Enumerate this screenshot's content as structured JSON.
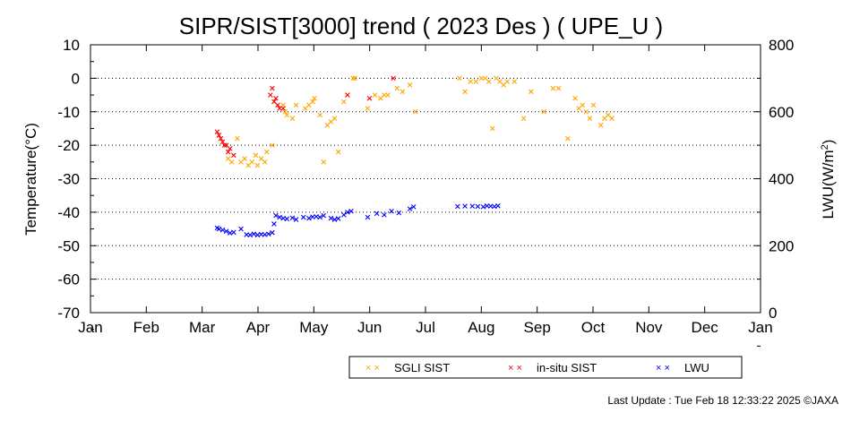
{
  "chart_data": {
    "type": "scatter",
    "title": "SIPR/SIST[3000] trend ( 2023 Des ) ( UPE_U )",
    "ylabel_left": "Temperature(°C)",
    "ylabel_right": "LWU(W/m",
    "ylabel_right_sup": "2",
    "ylabel_right_close": ")",
    "ylim_left": [
      -70,
      10
    ],
    "ylim_right": [
      0,
      800
    ],
    "yticks_left": [
      "10",
      "0",
      "-10",
      "-20",
      "-30",
      "-40",
      "-50",
      "-60",
      "-70"
    ],
    "yticks_right": [
      "800",
      "600",
      "400",
      "200",
      "0"
    ],
    "xticks": [
      "Jan",
      "Feb",
      "Mar",
      "Apr",
      "May",
      "Jun",
      "Jul",
      "Aug",
      "Sep",
      "Oct",
      "Nov",
      "Dec",
      "Jan"
    ],
    "grid": "horizontal dotted",
    "legend_position": "bottom",
    "series": [
      {
        "name": "SGLI SIST",
        "color": "#ffa500",
        "axis": "left",
        "points": [
          [
            "2023-03-17",
            -24
          ],
          [
            "2023-03-19",
            -25
          ],
          [
            "2023-03-22",
            -18
          ],
          [
            "2023-03-24",
            -25
          ],
          [
            "2023-03-26",
            -24
          ],
          [
            "2023-03-28",
            -26
          ],
          [
            "2023-03-30",
            -25
          ],
          [
            "2023-04-01",
            -23
          ],
          [
            "2023-04-02",
            -26
          ],
          [
            "2023-04-04",
            -24
          ],
          [
            "2023-04-06",
            -25
          ],
          [
            "2023-04-07",
            -22
          ],
          [
            "2023-04-10",
            -20
          ],
          [
            "2023-04-16",
            -8
          ],
          [
            "2023-04-17",
            -10
          ],
          [
            "2023-04-18",
            -11
          ],
          [
            "2023-04-21",
            -12
          ],
          [
            "2023-04-23",
            -8
          ],
          [
            "2023-04-28",
            -9
          ],
          [
            "2023-04-30",
            -8
          ],
          [
            "2023-05-02",
            -7
          ],
          [
            "2023-05-03",
            -6
          ],
          [
            "2023-05-06",
            -11
          ],
          [
            "2023-05-08",
            -25
          ],
          [
            "2023-05-10",
            -14
          ],
          [
            "2023-05-12",
            -13
          ],
          [
            "2023-05-14",
            -12
          ],
          [
            "2023-05-16",
            -22
          ],
          [
            "2023-05-19",
            -7
          ],
          [
            "2023-05-21",
            -5
          ],
          [
            "2023-05-24",
            0
          ],
          [
            "2023-05-25",
            0
          ],
          [
            "2023-06-01",
            -9
          ],
          [
            "2023-06-05",
            -5
          ],
          [
            "2023-06-08",
            -6
          ],
          [
            "2023-06-10",
            -5
          ],
          [
            "2023-06-12",
            -5
          ],
          [
            "2023-06-17",
            -3
          ],
          [
            "2023-06-20",
            -4
          ],
          [
            "2023-06-24",
            -2
          ],
          [
            "2023-06-27",
            -10
          ],
          [
            "2023-07-21",
            0
          ],
          [
            "2023-07-24",
            -4
          ],
          [
            "2023-07-27",
            -1
          ],
          [
            "2023-07-30",
            -1
          ],
          [
            "2023-08-02",
            0
          ],
          [
            "2023-08-04",
            0
          ],
          [
            "2023-08-06",
            -1
          ],
          [
            "2023-08-08",
            -15
          ],
          [
            "2023-08-10",
            0
          ],
          [
            "2023-08-12",
            -1
          ],
          [
            "2023-08-14",
            -2
          ],
          [
            "2023-08-16",
            -1
          ],
          [
            "2023-08-20",
            -1
          ],
          [
            "2023-08-25",
            -12
          ],
          [
            "2023-08-29",
            -4
          ],
          [
            "2023-09-05",
            -10
          ],
          [
            "2023-09-10",
            -3
          ],
          [
            "2023-09-13",
            -3
          ],
          [
            "2023-09-18",
            -18
          ],
          [
            "2023-09-22",
            -6
          ],
          [
            "2023-09-24",
            -9
          ],
          [
            "2023-09-26",
            -8
          ],
          [
            "2023-09-28",
            -10
          ],
          [
            "2023-09-30",
            -12
          ],
          [
            "2023-10-02",
            -8
          ],
          [
            "2023-10-06",
            -14
          ],
          [
            "2023-10-08",
            -12
          ],
          [
            "2023-10-10",
            -11
          ],
          [
            "2023-10-12",
            -12
          ]
        ]
      },
      {
        "name": "in-situ SIST",
        "color": "#ff0000",
        "axis": "left",
        "points": [
          [
            "2023-03-11",
            -16
          ],
          [
            "2023-03-12",
            -17
          ],
          [
            "2023-03-13",
            -18
          ],
          [
            "2023-03-14",
            -19
          ],
          [
            "2023-03-15",
            -20
          ],
          [
            "2023-03-16",
            -20
          ],
          [
            "2023-03-17",
            -22
          ],
          [
            "2023-03-18",
            -21
          ],
          [
            "2023-03-20",
            -23
          ],
          [
            "2023-04-09",
            -5
          ],
          [
            "2023-04-10",
            -3
          ],
          [
            "2023-04-11",
            -7
          ],
          [
            "2023-04-12",
            -6
          ],
          [
            "2023-04-13",
            -8
          ],
          [
            "2023-04-14",
            -9
          ],
          [
            "2023-04-16",
            -9
          ],
          [
            "2023-05-21",
            -5
          ],
          [
            "2023-06-02",
            -6
          ],
          [
            "2023-06-15",
            0
          ]
        ]
      },
      {
        "name": "LWU",
        "color": "#0000ff",
        "axis": "right",
        "points": [
          [
            "2023-03-11",
            253
          ],
          [
            "2023-03-12",
            250
          ],
          [
            "2023-03-14",
            247
          ],
          [
            "2023-03-16",
            243
          ],
          [
            "2023-03-18",
            238
          ],
          [
            "2023-03-20",
            240
          ],
          [
            "2023-03-24",
            250
          ],
          [
            "2023-03-27",
            233
          ],
          [
            "2023-03-29",
            232
          ],
          [
            "2023-03-31",
            235
          ],
          [
            "2023-04-02",
            232
          ],
          [
            "2023-04-04",
            234
          ],
          [
            "2023-04-06",
            233
          ],
          [
            "2023-04-08",
            235
          ],
          [
            "2023-04-10",
            239
          ],
          [
            "2023-04-11",
            265
          ],
          [
            "2023-04-12",
            290
          ],
          [
            "2023-04-14",
            285
          ],
          [
            "2023-04-16",
            282
          ],
          [
            "2023-04-18",
            280
          ],
          [
            "2023-04-21",
            283
          ],
          [
            "2023-04-23",
            278
          ],
          [
            "2023-04-27",
            285
          ],
          [
            "2023-04-30",
            282
          ],
          [
            "2023-05-02",
            286
          ],
          [
            "2023-05-04",
            287
          ],
          [
            "2023-05-06",
            285
          ],
          [
            "2023-05-08",
            290
          ],
          [
            "2023-05-12",
            282
          ],
          [
            "2023-05-14",
            278
          ],
          [
            "2023-05-16",
            281
          ],
          [
            "2023-05-19",
            292
          ],
          [
            "2023-05-21",
            300
          ],
          [
            "2023-05-23",
            303
          ],
          [
            "2023-06-01",
            285
          ],
          [
            "2023-06-06",
            296
          ],
          [
            "2023-06-10",
            292
          ],
          [
            "2023-06-14",
            303
          ],
          [
            "2023-06-18",
            298
          ],
          [
            "2023-06-24",
            310
          ],
          [
            "2023-06-26",
            316
          ],
          [
            "2023-07-20",
            317
          ],
          [
            "2023-07-24",
            318
          ],
          [
            "2023-07-28",
            318
          ],
          [
            "2023-07-31",
            317
          ],
          [
            "2023-08-03",
            316
          ],
          [
            "2023-08-05",
            319
          ],
          [
            "2023-08-07",
            318
          ],
          [
            "2023-08-09",
            317
          ],
          [
            "2023-08-11",
            319
          ]
        ]
      }
    ]
  },
  "legend_labels": {
    "sgli": "SGLI SIST",
    "insitu": "in-situ SIST",
    "lwu": "LWU"
  },
  "footer": "Last Update : Tue Feb 18 12:33:22 2025  ©JAXA"
}
